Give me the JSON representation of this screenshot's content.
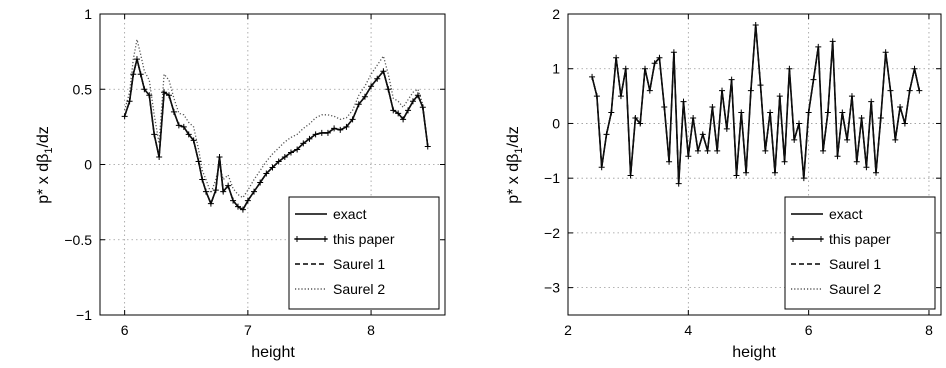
{
  "chart_data": [
    {
      "type": "line",
      "xlabel": "height",
      "ylabel_main": "p* x dβ",
      "ylabel_sub": "1",
      "ylabel_tail": "/dz",
      "xlim": [
        5.8,
        8.6
      ],
      "ylim": [
        -1,
        1
      ],
      "xticks": [
        6,
        7,
        8
      ],
      "yticks": [
        -1,
        -0.5,
        0,
        0.5,
        1
      ],
      "xtick_labels": [
        "6",
        "7",
        "8"
      ],
      "ytick_labels": [
        "−1",
        "−0.5",
        "0",
        "0.5",
        "1"
      ],
      "grid": true,
      "legend_position": "bottom-right",
      "series": [
        {
          "name": "exact",
          "style": "solid"
        },
        {
          "name": "this paper",
          "style": "solid-plus"
        },
        {
          "name": "Saurel 1",
          "style": "dashed"
        },
        {
          "name": "Saurel 2",
          "style": "dotted"
        }
      ],
      "x": [
        6.0,
        6.04,
        6.07,
        6.1,
        6.13,
        6.16,
        6.2,
        6.24,
        6.28,
        6.32,
        6.36,
        6.4,
        6.44,
        6.48,
        6.52,
        6.56,
        6.6,
        6.63,
        6.66,
        6.7,
        6.74,
        6.77,
        6.8,
        6.84,
        6.88,
        6.92,
        6.96,
        7.0,
        7.05,
        7.1,
        7.15,
        7.2,
        7.25,
        7.3,
        7.35,
        7.4,
        7.45,
        7.5,
        7.55,
        7.6,
        7.65,
        7.7,
        7.75,
        7.8,
        7.85,
        7.9,
        7.95,
        8.0,
        8.05,
        8.1,
        8.14,
        8.18,
        8.22,
        8.26,
        8.3,
        8.34,
        8.38,
        8.42,
        8.46
      ],
      "values": [
        0.32,
        0.42,
        0.6,
        0.7,
        0.6,
        0.5,
        0.46,
        0.2,
        0.05,
        0.48,
        0.46,
        0.35,
        0.26,
        0.25,
        0.2,
        0.16,
        0.02,
        -0.1,
        -0.18,
        -0.26,
        -0.17,
        0.05,
        -0.18,
        -0.14,
        -0.24,
        -0.28,
        -0.3,
        -0.24,
        -0.18,
        -0.12,
        -0.06,
        -0.02,
        0.02,
        0.05,
        0.08,
        0.1,
        0.14,
        0.17,
        0.2,
        0.21,
        0.21,
        0.24,
        0.23,
        0.25,
        0.3,
        0.4,
        0.45,
        0.52,
        0.57,
        0.62,
        0.5,
        0.36,
        0.34,
        0.3,
        0.36,
        0.42,
        0.46,
        0.38,
        0.12
      ],
      "saurel2_values": [
        0.36,
        0.48,
        0.7,
        0.83,
        0.73,
        0.62,
        0.56,
        0.33,
        0.14,
        0.6,
        0.56,
        0.44,
        0.34,
        0.33,
        0.28,
        0.25,
        0.1,
        -0.04,
        -0.1,
        -0.19,
        -0.1,
        0.0,
        -0.1,
        -0.07,
        -0.16,
        -0.2,
        -0.22,
        -0.17,
        -0.1,
        -0.04,
        0.02,
        0.07,
        0.11,
        0.15,
        0.18,
        0.2,
        0.24,
        0.27,
        0.31,
        0.33,
        0.33,
        0.32,
        0.3,
        0.31,
        0.36,
        0.46,
        0.52,
        0.6,
        0.66,
        0.72,
        0.6,
        0.44,
        0.42,
        0.38,
        0.43,
        0.48,
        0.5,
        0.4,
        0.12
      ]
    },
    {
      "type": "line",
      "xlabel": "height",
      "ylabel_main": "p* x dβ",
      "ylabel_sub": "1",
      "ylabel_tail": "/dz",
      "xlim": [
        2,
        8.2
      ],
      "ylim": [
        -3.5,
        2
      ],
      "xticks": [
        2,
        4,
        6,
        8
      ],
      "yticks": [
        -3,
        -2,
        -1,
        0,
        1,
        2
      ],
      "xtick_labels": [
        "2",
        "4",
        "6",
        "8"
      ],
      "ytick_labels": [
        "−3",
        "−2",
        "−1",
        "0",
        "1",
        "2"
      ],
      "grid": true,
      "legend_position": "bottom-right",
      "series": [
        {
          "name": "exact",
          "style": "solid"
        },
        {
          "name": "this paper",
          "style": "solid-plus"
        },
        {
          "name": "Saurel 1",
          "style": "dashed"
        },
        {
          "name": "Saurel 2",
          "style": "dotted"
        }
      ],
      "x": [
        2.4,
        2.48,
        2.56,
        2.64,
        2.72,
        2.8,
        2.88,
        2.96,
        3.04,
        3.12,
        3.2,
        3.28,
        3.36,
        3.44,
        3.52,
        3.6,
        3.68,
        3.76,
        3.84,
        3.92,
        4.0,
        4.08,
        4.16,
        4.24,
        4.32,
        4.4,
        4.48,
        4.56,
        4.64,
        4.72,
        4.8,
        4.88,
        4.96,
        5.04,
        5.12,
        5.2,
        5.28,
        5.36,
        5.44,
        5.52,
        5.6,
        5.68,
        5.76,
        5.84,
        5.92,
        6.0,
        6.08,
        6.16,
        6.24,
        6.32,
        6.4,
        6.48,
        6.56,
        6.64,
        6.72,
        6.8,
        6.88,
        6.96,
        7.04,
        7.12,
        7.2,
        7.28,
        7.36,
        7.44,
        7.52,
        7.6,
        7.68,
        7.76,
        7.84
      ],
      "values": [
        0.85,
        0.5,
        -0.8,
        -0.2,
        0.2,
        1.2,
        0.5,
        1.0,
        -0.95,
        0.1,
        0.0,
        1.0,
        0.6,
        1.1,
        1.2,
        0.3,
        -0.7,
        1.3,
        -1.1,
        0.4,
        -0.6,
        0.1,
        -0.5,
        -0.2,
        -0.5,
        0.3,
        -0.5,
        0.6,
        -0.1,
        0.8,
        -0.95,
        0.2,
        -0.9,
        0.6,
        1.8,
        0.7,
        -0.5,
        0.2,
        -0.9,
        0.5,
        -0.7,
        1.0,
        -0.3,
        0.0,
        -1.0,
        0.2,
        0.8,
        1.4,
        -0.5,
        0.2,
        1.5,
        -0.6,
        0.2,
        -0.3,
        0.5,
        -0.7,
        0.1,
        -0.8,
        0.4,
        -0.9,
        0.1,
        1.3,
        0.6,
        -0.3,
        0.3,
        0.0,
        0.6,
        1.0,
        0.6
      ]
    }
  ]
}
